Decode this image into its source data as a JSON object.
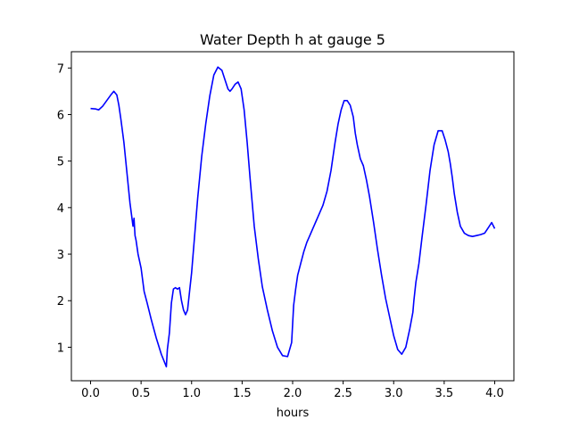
{
  "chart_data": {
    "type": "line",
    "title": "Water Depth h at gauge 5",
    "xlabel": "hours",
    "ylabel": "",
    "xlim": [
      -0.19,
      4.19
    ],
    "ylim": [
      0.28,
      7.35
    ],
    "xticks": [
      "0.0",
      "0.5",
      "1.0",
      "1.5",
      "2.0",
      "2.5",
      "3.0",
      "3.5",
      "4.0"
    ],
    "yticks": [
      "1",
      "2",
      "3",
      "4",
      "5",
      "6",
      "7"
    ],
    "grid": false,
    "series": [
      {
        "color": "#0000ff",
        "x": [
          0.0,
          0.05,
          0.08,
          0.12,
          0.16,
          0.2,
          0.23,
          0.26,
          0.28,
          0.3,
          0.33,
          0.36,
          0.39,
          0.42,
          0.43,
          0.44,
          0.45,
          0.47,
          0.5,
          0.53,
          0.56,
          0.6,
          0.65,
          0.7,
          0.75,
          0.76,
          0.78,
          0.8,
          0.82,
          0.84,
          0.86,
          0.88,
          0.9,
          0.92,
          0.94,
          0.96,
          0.98,
          1.0,
          1.03,
          1.06,
          1.1,
          1.14,
          1.18,
          1.22,
          1.26,
          1.3,
          1.33,
          1.36,
          1.38,
          1.4,
          1.43,
          1.46,
          1.49,
          1.52,
          1.55,
          1.58,
          1.62,
          1.66,
          1.7,
          1.75,
          1.8,
          1.85,
          1.9,
          1.95,
          1.99,
          2.0,
          2.01,
          2.03,
          2.05,
          2.08,
          2.11,
          2.14,
          2.17,
          2.2,
          2.23,
          2.26,
          2.3,
          2.34,
          2.38,
          2.42,
          2.45,
          2.48,
          2.51,
          2.54,
          2.57,
          2.6,
          2.62,
          2.64,
          2.67,
          2.7,
          2.73,
          2.76,
          2.8,
          2.84,
          2.88,
          2.92,
          2.96,
          3.0,
          3.04,
          3.08,
          3.12,
          3.16,
          3.19,
          3.2,
          3.22,
          3.25,
          3.28,
          3.32,
          3.36,
          3.4,
          3.44,
          3.48,
          3.51,
          3.54,
          3.56,
          3.58,
          3.6,
          3.63,
          3.66,
          3.7,
          3.74,
          3.78,
          3.82,
          3.86,
          3.9,
          3.94,
          3.97,
          4.0
        ],
        "y": [
          6.13,
          6.12,
          6.1,
          6.18,
          6.3,
          6.42,
          6.5,
          6.42,
          6.2,
          5.9,
          5.4,
          4.75,
          4.1,
          3.6,
          3.77,
          3.4,
          3.3,
          3.0,
          2.7,
          2.2,
          1.95,
          1.6,
          1.2,
          0.85,
          0.58,
          0.95,
          1.3,
          1.95,
          2.25,
          2.28,
          2.25,
          2.28,
          2.0,
          1.8,
          1.7,
          1.8,
          2.2,
          2.6,
          3.4,
          4.2,
          5.1,
          5.8,
          6.4,
          6.85,
          7.02,
          6.95,
          6.75,
          6.55,
          6.5,
          6.55,
          6.65,
          6.7,
          6.55,
          6.1,
          5.4,
          4.6,
          3.6,
          2.9,
          2.3,
          1.8,
          1.35,
          1.0,
          0.82,
          0.8,
          1.1,
          1.5,
          1.9,
          2.25,
          2.55,
          2.8,
          3.05,
          3.25,
          3.4,
          3.55,
          3.7,
          3.85,
          4.05,
          4.35,
          4.8,
          5.4,
          5.8,
          6.1,
          6.3,
          6.3,
          6.2,
          5.95,
          5.6,
          5.35,
          5.05,
          4.9,
          4.6,
          4.25,
          3.7,
          3.1,
          2.55,
          2.05,
          1.65,
          1.25,
          0.95,
          0.85,
          1.0,
          1.4,
          1.75,
          2.0,
          2.4,
          2.8,
          3.35,
          4.05,
          4.8,
          5.35,
          5.65,
          5.65,
          5.45,
          5.2,
          4.95,
          4.65,
          4.3,
          3.9,
          3.6,
          3.45,
          3.4,
          3.38,
          3.4,
          3.42,
          3.45,
          3.58,
          3.68,
          3.55
        ]
      }
    ]
  }
}
